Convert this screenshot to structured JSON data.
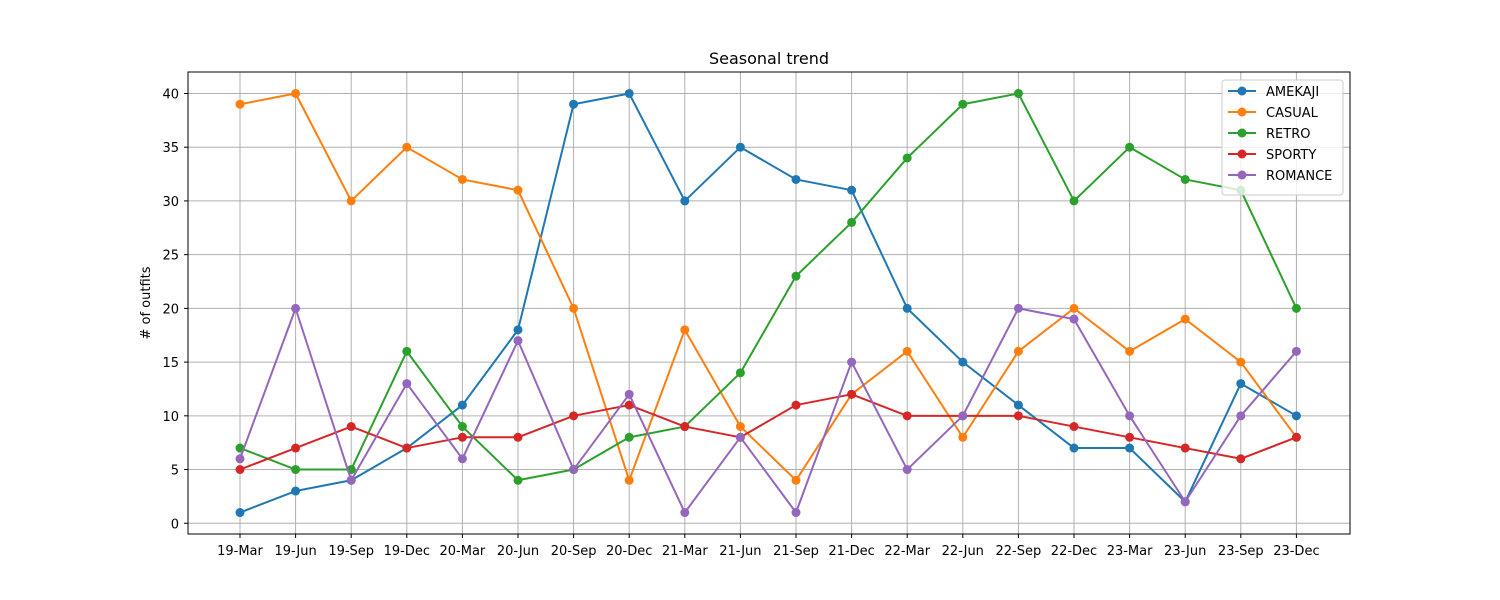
{
  "chart_data": {
    "type": "line",
    "title": "Seasonal trend",
    "xlabel": "",
    "ylabel": "# of outfits",
    "categories": [
      "19-Mar",
      "19-Jun",
      "19-Sep",
      "19-Dec",
      "20-Mar",
      "20-Jun",
      "20-Sep",
      "20-Dec",
      "21-Mar",
      "21-Jun",
      "21-Sep",
      "21-Dec",
      "22-Mar",
      "22-Jun",
      "22-Sep",
      "22-Dec",
      "23-Mar",
      "23-Jun",
      "23-Sep",
      "23-Dec"
    ],
    "ylim": [
      -1,
      42
    ],
    "yticks": [
      0,
      5,
      10,
      15,
      20,
      25,
      30,
      35,
      40
    ],
    "grid": true,
    "legend_position": "top-right",
    "series": [
      {
        "name": "AMEKAJI",
        "color": "#1f77b4",
        "values": [
          1,
          3,
          4,
          7,
          11,
          18,
          39,
          40,
          30,
          35,
          32,
          31,
          20,
          15,
          11,
          7,
          7,
          2,
          13,
          10
        ]
      },
      {
        "name": "CASUAL",
        "color": "#ff7f0e",
        "values": [
          39,
          40,
          30,
          35,
          32,
          31,
          20,
          4,
          18,
          9,
          4,
          12,
          16,
          8,
          16,
          20,
          16,
          19,
          15,
          8
        ]
      },
      {
        "name": "RETRO",
        "color": "#2ca02c",
        "values": [
          7,
          5,
          5,
          16,
          9,
          4,
          5,
          8,
          9,
          14,
          23,
          28,
          34,
          39,
          40,
          30,
          35,
          32,
          31,
          20
        ]
      },
      {
        "name": "SPORTY",
        "color": "#d62728",
        "values": [
          5,
          7,
          9,
          7,
          8,
          8,
          10,
          11,
          9,
          8,
          11,
          12,
          10,
          10,
          10,
          9,
          8,
          7,
          6,
          8
        ]
      },
      {
        "name": "ROMANCE",
        "color": "#9467bd",
        "values": [
          6,
          20,
          4,
          13,
          6,
          17,
          5,
          12,
          1,
          8,
          1,
          15,
          5,
          10,
          20,
          19,
          10,
          2,
          10,
          16
        ]
      }
    ]
  }
}
